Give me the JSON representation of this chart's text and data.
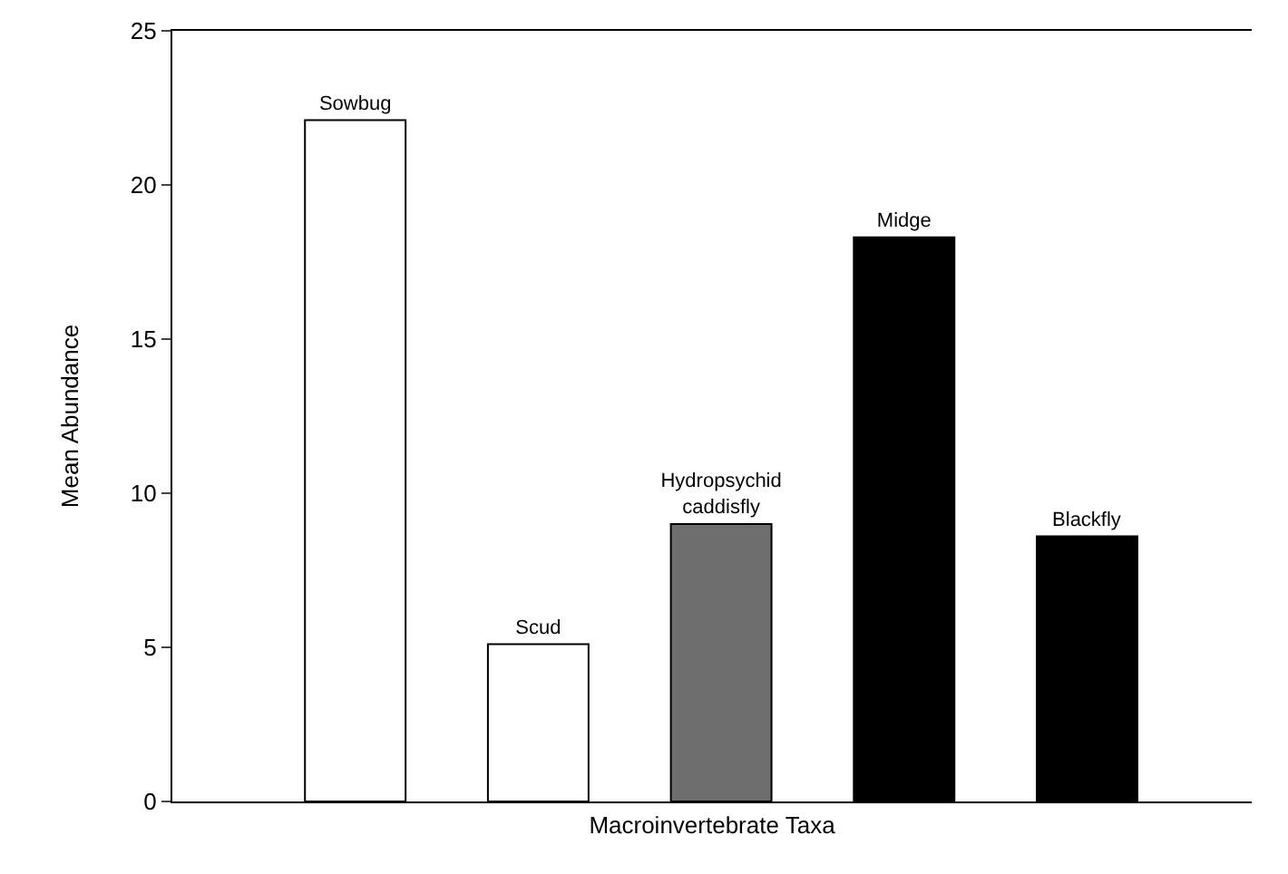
{
  "chart_data": {
    "type": "bar",
    "xlabel": "Macroinvertebrate Taxa",
    "ylabel": "Mean Abundance",
    "categories": [
      "Sowbug",
      "Scud",
      "Hydropsychid\ncaddisfly",
      "Midge",
      "Blackfly"
    ],
    "values": [
      22.1,
      5.1,
      9.0,
      18.3,
      8.6
    ],
    "colors": [
      "#ffffff",
      "#ffffff",
      "#6e6e6e",
      "#000000",
      "#000000"
    ],
    "ylim": [
      0,
      25
    ],
    "yticks": [
      0,
      5,
      10,
      15,
      20,
      25
    ],
    "tick_labels": "y"
  }
}
